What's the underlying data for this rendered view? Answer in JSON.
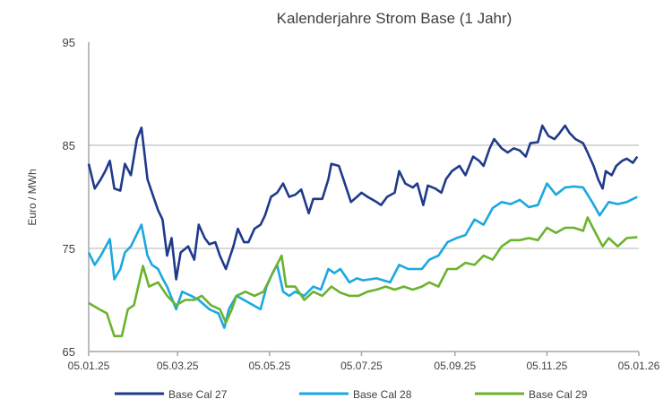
{
  "chart_data": {
    "type": "line",
    "title": "Kalenderjahre Strom Base (1 Jahr)",
    "xlabel": "",
    "ylabel": "Euro / MWh",
    "x_unit": "days since 05.01.25",
    "xlim": [
      0,
      365
    ],
    "ylim": [
      65,
      95
    ],
    "y_ticks": [
      65,
      75,
      85,
      95
    ],
    "y_gridlines": [
      75,
      85
    ],
    "x_ticks": [
      {
        "day": 0,
        "label": "05.01.25"
      },
      {
        "day": 59,
        "label": "05.03.25"
      },
      {
        "day": 120,
        "label": "05.05.25"
      },
      {
        "day": 181,
        "label": "05.07.25"
      },
      {
        "day": 243,
        "label": "05.09.25"
      },
      {
        "day": 304,
        "label": "05.11.25"
      },
      {
        "day": 365,
        "label": "05.01.26"
      }
    ],
    "legend_position": "bottom",
    "series": [
      {
        "name": "Base Cal 27",
        "color": "#1f3a8a",
        "points": [
          [
            0,
            83.2
          ],
          [
            4,
            80.8
          ],
          [
            8,
            81.7
          ],
          [
            11,
            82.5
          ],
          [
            14,
            83.5
          ],
          [
            17,
            80.8
          ],
          [
            21,
            80.6
          ],
          [
            24,
            83.2
          ],
          [
            28,
            82.1
          ],
          [
            32,
            85.6
          ],
          [
            35,
            86.7
          ],
          [
            39,
            81.7
          ],
          [
            42,
            80.4
          ],
          [
            46,
            78.7
          ],
          [
            49,
            77.8
          ],
          [
            52,
            74.3
          ],
          [
            55,
            76
          ],
          [
            58,
            72
          ],
          [
            61,
            74.6
          ],
          [
            66,
            75.2
          ],
          [
            70,
            73.9
          ],
          [
            73,
            77.3
          ],
          [
            77,
            76
          ],
          [
            80,
            75.4
          ],
          [
            84,
            75.6
          ],
          [
            87,
            74.3
          ],
          [
            91,
            73
          ],
          [
            96,
            75.2
          ],
          [
            99,
            76.9
          ],
          [
            103,
            75.6
          ],
          [
            106,
            75.6
          ],
          [
            110,
            76.9
          ],
          [
            114,
            77.3
          ],
          [
            117,
            78.2
          ],
          [
            121,
            80
          ],
          [
            125,
            80.4
          ],
          [
            129,
            81.3
          ],
          [
            133,
            80
          ],
          [
            137,
            80.2
          ],
          [
            141,
            80.7
          ],
          [
            146,
            78.4
          ],
          [
            149,
            79.8
          ],
          [
            155,
            79.8
          ],
          [
            159,
            81.7
          ],
          [
            161,
            83.2
          ],
          [
            166,
            83
          ],
          [
            169,
            81.7
          ],
          [
            174,
            79.5
          ],
          [
            178,
            80
          ],
          [
            181,
            80.4
          ],
          [
            185,
            80
          ],
          [
            191,
            79.5
          ],
          [
            194,
            79.2
          ],
          [
            198,
            80
          ],
          [
            203,
            80.4
          ],
          [
            206,
            82.5
          ],
          [
            210,
            81.3
          ],
          [
            215,
            80.9
          ],
          [
            218,
            81.3
          ],
          [
            222,
            79.2
          ],
          [
            225,
            81.1
          ],
          [
            230,
            80.8
          ],
          [
            234,
            80.4
          ],
          [
            237,
            81.7
          ],
          [
            241,
            82.5
          ],
          [
            246,
            83
          ],
          [
            250,
            82.1
          ],
          [
            255,
            83.9
          ],
          [
            259,
            83.5
          ],
          [
            262,
            83
          ],
          [
            266,
            84.7
          ],
          [
            269,
            85.6
          ],
          [
            274,
            84.7
          ],
          [
            278,
            84.3
          ],
          [
            282,
            84.7
          ],
          [
            286,
            84.5
          ],
          [
            290,
            83.9
          ],
          [
            293,
            85.2
          ],
          [
            298,
            85.3
          ],
          [
            301,
            86.9
          ],
          [
            305,
            85.9
          ],
          [
            309,
            85.6
          ],
          [
            312,
            86.1
          ],
          [
            316,
            86.9
          ],
          [
            319,
            86.2
          ],
          [
            323,
            85.6
          ],
          [
            328,
            85.2
          ],
          [
            331,
            84.3
          ],
          [
            335,
            83
          ],
          [
            338,
            81.7
          ],
          [
            341,
            80.8
          ],
          [
            343,
            82.5
          ],
          [
            347,
            82.1
          ],
          [
            350,
            83
          ],
          [
            354,
            83.5
          ],
          [
            357,
            83.7
          ],
          [
            361,
            83.3
          ],
          [
            364,
            83.9
          ]
        ]
      },
      {
        "name": "Base Cal 28",
        "color": "#1ba8e0",
        "points": [
          [
            0,
            74.6
          ],
          [
            4,
            73.4
          ],
          [
            8,
            74.3
          ],
          [
            14,
            75.9
          ],
          [
            17,
            72
          ],
          [
            21,
            73
          ],
          [
            24,
            74.6
          ],
          [
            28,
            75.2
          ],
          [
            35,
            77.3
          ],
          [
            39,
            74.3
          ],
          [
            42,
            73.4
          ],
          [
            46,
            73
          ],
          [
            49,
            72.1
          ],
          [
            52,
            71.3
          ],
          [
            58,
            69.1
          ],
          [
            62,
            70.8
          ],
          [
            68,
            70.4
          ],
          [
            73,
            70
          ],
          [
            80,
            69.1
          ],
          [
            86,
            68.7
          ],
          [
            90,
            67.3
          ],
          [
            93,
            69.1
          ],
          [
            98,
            70.4
          ],
          [
            103,
            70
          ],
          [
            109,
            69.5
          ],
          [
            114,
            69.1
          ],
          [
            118,
            71.3
          ],
          [
            122,
            72.6
          ],
          [
            125,
            73.4
          ],
          [
            129,
            70.8
          ],
          [
            133,
            70.4
          ],
          [
            137,
            70.8
          ],
          [
            143,
            70.4
          ],
          [
            149,
            71.3
          ],
          [
            154,
            71
          ],
          [
            159,
            73
          ],
          [
            163,
            72.6
          ],
          [
            167,
            73
          ],
          [
            173,
            71.7
          ],
          [
            178,
            72.1
          ],
          [
            182,
            71.9
          ],
          [
            191,
            72.1
          ],
          [
            200,
            71.7
          ],
          [
            206,
            73.4
          ],
          [
            212,
            73
          ],
          [
            221,
            73
          ],
          [
            226,
            73.9
          ],
          [
            232,
            74.3
          ],
          [
            238,
            75.6
          ],
          [
            244,
            76
          ],
          [
            250,
            76.3
          ],
          [
            256,
            77.8
          ],
          [
            262,
            77.3
          ],
          [
            268,
            78.9
          ],
          [
            274,
            79.5
          ],
          [
            280,
            79.3
          ],
          [
            286,
            79.7
          ],
          [
            292,
            79
          ],
          [
            298,
            79.2
          ],
          [
            304,
            81.3
          ],
          [
            310,
            80.2
          ],
          [
            316,
            80.9
          ],
          [
            322,
            81
          ],
          [
            328,
            80.9
          ],
          [
            334,
            79.5
          ],
          [
            339,
            78.2
          ],
          [
            345,
            79.5
          ],
          [
            351,
            79.3
          ],
          [
            357,
            79.5
          ],
          [
            364,
            80
          ]
        ]
      },
      {
        "name": "Base Cal 29",
        "color": "#6bb32e",
        "points": [
          [
            0,
            69.7
          ],
          [
            7,
            69.1
          ],
          [
            12,
            68.7
          ],
          [
            17,
            66.5
          ],
          [
            22,
            66.5
          ],
          [
            26,
            69.1
          ],
          [
            30,
            69.5
          ],
          [
            36,
            73.3
          ],
          [
            40,
            71.3
          ],
          [
            46,
            71.7
          ],
          [
            52,
            70.4
          ],
          [
            58,
            69.5
          ],
          [
            64,
            70
          ],
          [
            70,
            70
          ],
          [
            75,
            70.4
          ],
          [
            81,
            69.5
          ],
          [
            87,
            69.1
          ],
          [
            91,
            67.8
          ],
          [
            95,
            69.1
          ],
          [
            98,
            70.4
          ],
          [
            104,
            70.8
          ],
          [
            110,
            70.4
          ],
          [
            116,
            70.8
          ],
          [
            122,
            72.6
          ],
          [
            128,
            74.3
          ],
          [
            131,
            71.3
          ],
          [
            137,
            71.3
          ],
          [
            143,
            70
          ],
          [
            149,
            70.8
          ],
          [
            155,
            70.4
          ],
          [
            161,
            71.3
          ],
          [
            167,
            70.7
          ],
          [
            173,
            70.4
          ],
          [
            179,
            70.4
          ],
          [
            185,
            70.8
          ],
          [
            191,
            71
          ],
          [
            197,
            71.3
          ],
          [
            203,
            71
          ],
          [
            209,
            71.3
          ],
          [
            215,
            71
          ],
          [
            221,
            71.3
          ],
          [
            226,
            71.7
          ],
          [
            232,
            71.3
          ],
          [
            238,
            73
          ],
          [
            244,
            73
          ],
          [
            250,
            73.6
          ],
          [
            256,
            73.4
          ],
          [
            262,
            74.3
          ],
          [
            268,
            73.9
          ],
          [
            274,
            75.2
          ],
          [
            280,
            75.8
          ],
          [
            286,
            75.8
          ],
          [
            292,
            76
          ],
          [
            298,
            75.8
          ],
          [
            304,
            77
          ],
          [
            310,
            76.5
          ],
          [
            316,
            77
          ],
          [
            322,
            77
          ],
          [
            328,
            76.7
          ],
          [
            331,
            78
          ],
          [
            337,
            76.3
          ],
          [
            341,
            75.2
          ],
          [
            345,
            76
          ],
          [
            351,
            75.2
          ],
          [
            357,
            76
          ],
          [
            364,
            76.1
          ]
        ]
      }
    ]
  }
}
